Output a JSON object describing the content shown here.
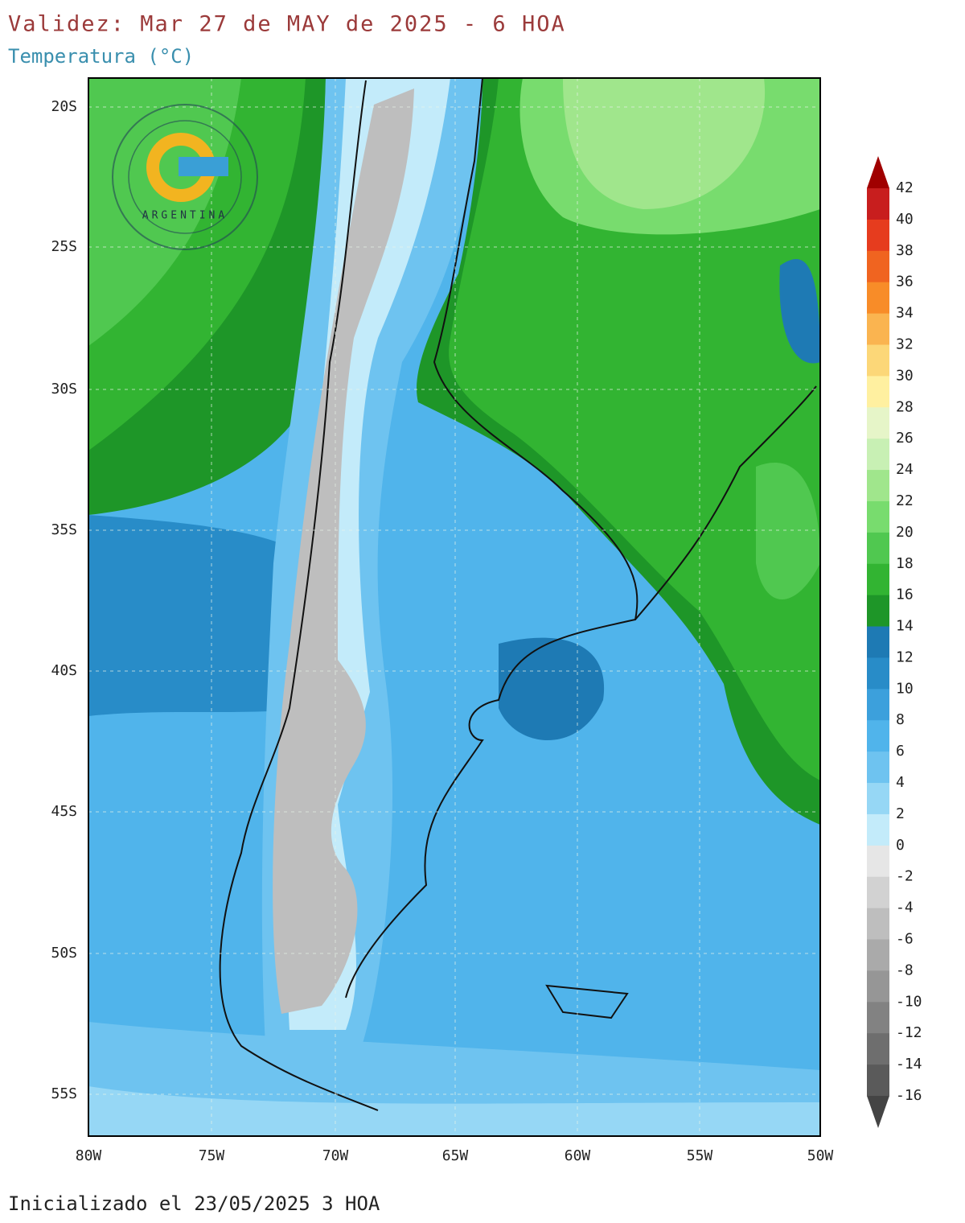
{
  "header": {
    "title": "Validez: Mar 27 de MAY de 2025 - 6 HOA",
    "subtitle": "Temperatura (°C)"
  },
  "map": {
    "lat_labels": [
      "20S",
      "25S",
      "30S",
      "35S",
      "40S",
      "45S",
      "50S",
      "55S"
    ],
    "lon_labels": [
      "80W",
      "75W",
      "70W",
      "65W",
      "60W",
      "55W",
      "50W"
    ],
    "logo": {
      "text": "ARGENTINA"
    }
  },
  "colorbar": {
    "labels": [
      42,
      40,
      38,
      36,
      34,
      32,
      30,
      28,
      26,
      24,
      22,
      20,
      18,
      16,
      14,
      12,
      10,
      8,
      6,
      4,
      2,
      0,
      -2,
      -4,
      -6,
      -8,
      -10,
      -12,
      -14,
      -16
    ],
    "top_color": "#a00000",
    "colors": [
      "#c81e1e",
      "#e63c1e",
      "#f06420",
      "#f88c28",
      "#fab450",
      "#fcd778",
      "#fff0a0",
      "#e6f5c8",
      "#c8f0b4",
      "#a0e68c",
      "#78dc6e",
      "#50c850",
      "#32b432",
      "#1e9628",
      "#1e7ab4",
      "#288cc8",
      "#3ca0dc",
      "#50b4eb",
      "#6ec3f0",
      "#96d7f5",
      "#c3ebfa",
      "#e6e6e6",
      "#d2d2d2",
      "#bebebe",
      "#aaaaaa",
      "#969696",
      "#828282",
      "#6e6e6e",
      "#5a5a5a"
    ],
    "bottom_color": "#444444"
  },
  "footer": {
    "text": "Inicializado el 23/05/2025 3 HOA"
  }
}
